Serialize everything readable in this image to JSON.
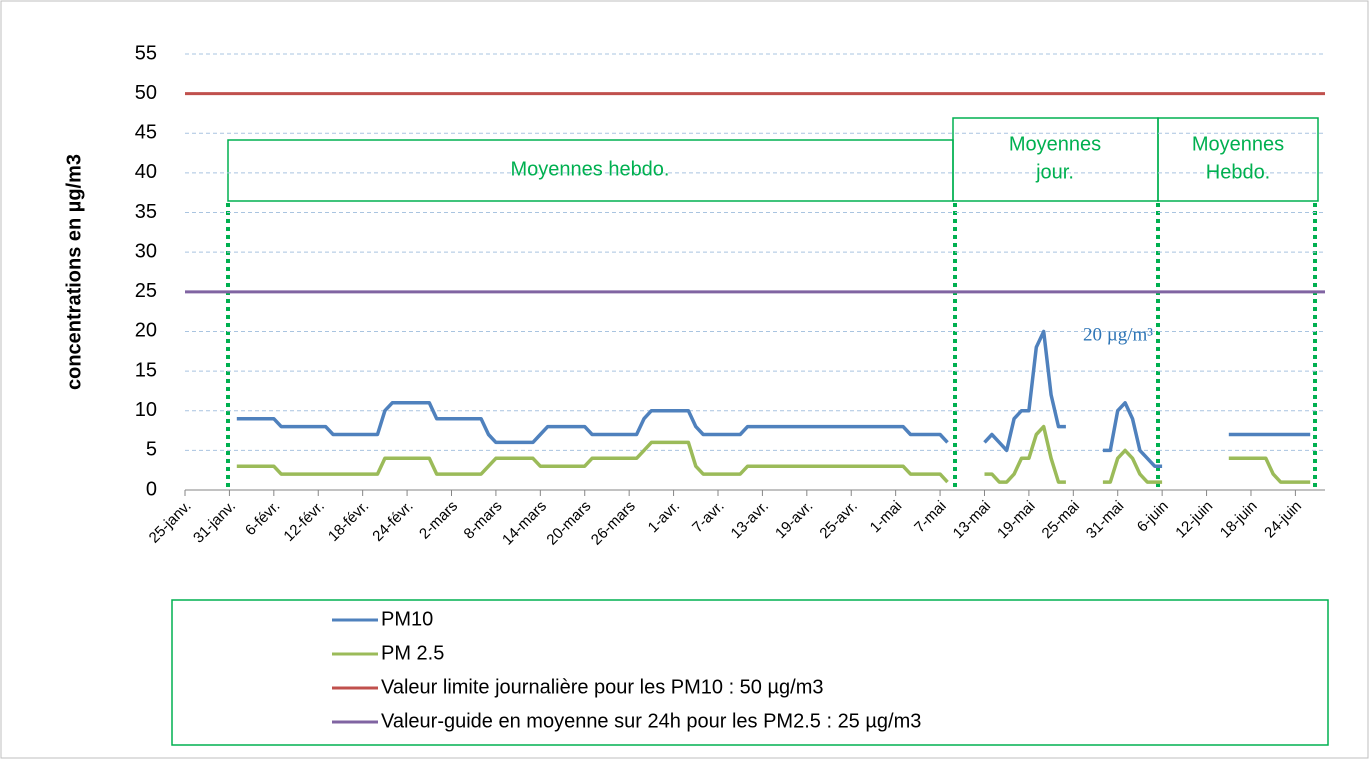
{
  "chart_data": {
    "type": "line",
    "ylabel": "concentrations  en  µg/m3",
    "ylim": [
      0,
      55
    ],
    "yticks": [
      0,
      5,
      10,
      15,
      20,
      25,
      30,
      35,
      40,
      45,
      50,
      55
    ],
    "grid": true,
    "categories": [
      "25-janv.",
      null,
      null,
      null,
      null,
      null,
      "31-janv.",
      null,
      null,
      null,
      null,
      null,
      "6-févr.",
      null,
      null,
      null,
      null,
      null,
      "12-févr.",
      null,
      null,
      null,
      null,
      null,
      "18-févr.",
      null,
      null,
      null,
      null,
      null,
      "24-févr.",
      null,
      null,
      null,
      null,
      null,
      "2-mars",
      null,
      null,
      null,
      null,
      null,
      "8-mars",
      null,
      null,
      null,
      null,
      null,
      "14-mars",
      null,
      null,
      null,
      null,
      null,
      "20-mars",
      null,
      null,
      null,
      null,
      null,
      "26-mars",
      null,
      null,
      null,
      null,
      null,
      "1-avr.",
      null,
      null,
      null,
      null,
      null,
      "7-avr.",
      null,
      null,
      null,
      null,
      null,
      "13-avr.",
      null,
      null,
      null,
      null,
      null,
      "19-avr.",
      null,
      null,
      null,
      null,
      null,
      "25-avr.",
      null,
      null,
      null,
      null,
      null,
      "1-mai",
      null,
      null,
      null,
      null,
      null,
      "7-mai",
      null,
      null,
      null,
      null,
      null,
      "13-mai",
      null,
      null,
      null,
      null,
      null,
      "19-mai",
      null,
      null,
      null,
      null,
      null,
      "25-mai",
      null,
      null,
      null,
      null,
      null,
      "31-mai",
      null,
      null,
      null,
      null,
      null,
      "6-juin",
      null,
      null,
      null,
      null,
      null,
      "12-juin",
      null,
      null,
      null,
      null,
      null,
      "18-juin",
      null,
      null,
      null,
      null,
      null,
      "24-juin",
      null,
      null,
      null,
      null
    ],
    "series": [
      {
        "name": "PM10",
        "color": "#4f81bd",
        "values": [
          null,
          null,
          null,
          null,
          null,
          null,
          null,
          9,
          9,
          9,
          9,
          9,
          9,
          8,
          8,
          8,
          8,
          8,
          8,
          8,
          7,
          7,
          7,
          7,
          7,
          7,
          7,
          10,
          11,
          11,
          11,
          11,
          11,
          11,
          9,
          9,
          9,
          9,
          9,
          9,
          9,
          7,
          6,
          6,
          6,
          6,
          6,
          6,
          7,
          8,
          8,
          8,
          8,
          8,
          8,
          7,
          7,
          7,
          7,
          7,
          7,
          7,
          9,
          10,
          10,
          10,
          10,
          10,
          10,
          8,
          7,
          7,
          7,
          7,
          7,
          7,
          8,
          8,
          8,
          8,
          8,
          8,
          8,
          8,
          8,
          8,
          8,
          8,
          8,
          8,
          8,
          8,
          8,
          8,
          8,
          8,
          8,
          8,
          7,
          7,
          7,
          7,
          7,
          6,
          null,
          null,
          null,
          null,
          6,
          7,
          6,
          5,
          9,
          10,
          10,
          18,
          20,
          12,
          8,
          8,
          null,
          null,
          null,
          null,
          5,
          5,
          10,
          11,
          9,
          5,
          4,
          3,
          3,
          null,
          null,
          null,
          null,
          null,
          null,
          null,
          null,
          7,
          7,
          7,
          7,
          7,
          7,
          7,
          7,
          7,
          7,
          7,
          7,
          null,
          null
        ]
      },
      {
        "name": "PM 2.5",
        "color": "#9bbb59",
        "values": [
          null,
          null,
          null,
          null,
          null,
          null,
          null,
          3,
          3,
          3,
          3,
          3,
          3,
          2,
          2,
          2,
          2,
          2,
          2,
          2,
          2,
          2,
          2,
          2,
          2,
          2,
          2,
          4,
          4,
          4,
          4,
          4,
          4,
          4,
          2,
          2,
          2,
          2,
          2,
          2,
          2,
          3,
          4,
          4,
          4,
          4,
          4,
          4,
          3,
          3,
          3,
          3,
          3,
          3,
          3,
          4,
          4,
          4,
          4,
          4,
          4,
          4,
          5,
          6,
          6,
          6,
          6,
          6,
          6,
          3,
          2,
          2,
          2,
          2,
          2,
          2,
          3,
          3,
          3,
          3,
          3,
          3,
          3,
          3,
          3,
          3,
          3,
          3,
          3,
          3,
          3,
          3,
          3,
          3,
          3,
          3,
          3,
          3,
          2,
          2,
          2,
          2,
          2,
          1,
          null,
          null,
          null,
          null,
          2,
          2,
          1,
          1,
          2,
          4,
          4,
          7,
          8,
          4,
          1,
          1,
          null,
          null,
          null,
          null,
          1,
          1,
          4,
          5,
          4,
          2,
          1,
          1,
          1,
          null,
          null,
          null,
          null,
          null,
          null,
          null,
          null,
          4,
          4,
          4,
          4,
          4,
          4,
          2,
          1,
          1,
          1,
          1,
          1,
          null,
          null
        ]
      }
    ],
    "reference_lines": [
      {
        "name": "Valeur limite journalière pour les PM10 : 50 µg/m3",
        "value": 50,
        "color": "#c0504d"
      },
      {
        "name": "Valeur-guide en moyenne sur 24h pour les PM2.5 : 25 µg/m3",
        "value": 25,
        "color": "#8064a2"
      }
    ],
    "annotations": [
      {
        "lines": [
          "Moyennes hebdo."
        ]
      },
      {
        "lines": [
          "Moyennes",
          "jour."
        ]
      },
      {
        "lines": [
          "Moyennes",
          "Hebdo."
        ]
      },
      {
        "lines": [
          "20 µg/m³"
        ]
      }
    ]
  }
}
